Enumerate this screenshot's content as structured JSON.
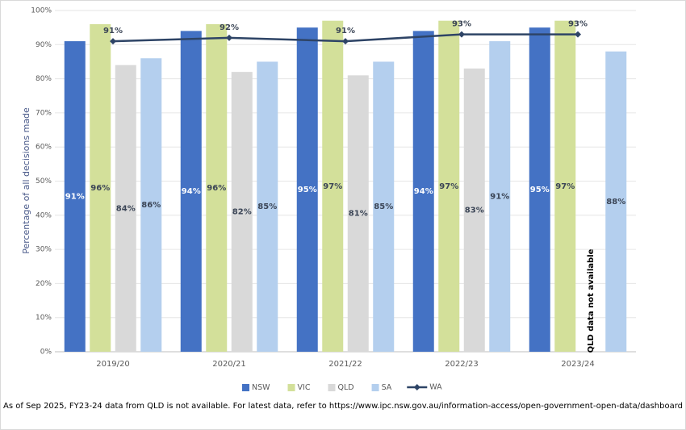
{
  "chart_data": {
    "type": "bar",
    "y_label": "Percentage of all decisions made",
    "categories": [
      "2019/20",
      "2020/21",
      "2021/22",
      "2022/23",
      "2023/24"
    ],
    "series": [
      {
        "name": "NSW",
        "color": "#4472c4",
        "values": [
          91,
          94,
          95,
          94,
          95
        ],
        "value_labels": [
          "91%",
          "94%",
          "95%",
          "94%",
          "95%"
        ]
      },
      {
        "name": "VIC",
        "color": "#d3e09a",
        "values": [
          96,
          96,
          97,
          97,
          97
        ],
        "value_labels": [
          "96%",
          "96%",
          "97%",
          "97%",
          "97%"
        ]
      },
      {
        "name": "QLD",
        "color": "#d9d9d9",
        "values": [
          84,
          82,
          81,
          83,
          null
        ],
        "value_labels": [
          "84%",
          "82%",
          "81%",
          "83%",
          null
        ]
      },
      {
        "name": "SA",
        "color": "#b4cfee",
        "values": [
          86,
          85,
          85,
          91,
          88
        ],
        "value_labels": [
          "86%",
          "85%",
          "85%",
          "91%",
          "88%"
        ]
      },
      {
        "name": "WA",
        "type": "line",
        "color": "#2e4466",
        "values": [
          91,
          92,
          91,
          93,
          93
        ],
        "value_labels": [
          "91%",
          "92%",
          "91%",
          "93%",
          "93%"
        ]
      }
    ],
    "ylim": [
      0,
      100
    ],
    "yticks": [
      {
        "value": 0,
        "label": "0%"
      },
      {
        "value": 10,
        "label": "10%"
      },
      {
        "value": 20,
        "label": "20%"
      },
      {
        "value": 30,
        "label": "30%"
      },
      {
        "value": 40,
        "label": "40%"
      },
      {
        "value": 50,
        "label": "50%"
      },
      {
        "value": 60,
        "label": "60%"
      },
      {
        "value": 70,
        "label": "70%"
      },
      {
        "value": 80,
        "label": "80%"
      },
      {
        "value": 90,
        "label": "90%"
      },
      {
        "value": 100,
        "label": "100%"
      }
    ],
    "grid": true,
    "annotation": "QLD data not available",
    "footnote": "As of Sep 2025, FY23-24 data from QLD is not available. For latest data, refer to https://www.ipc.nsw.gov.au/information-access/open-government-open-data/dashboard"
  }
}
